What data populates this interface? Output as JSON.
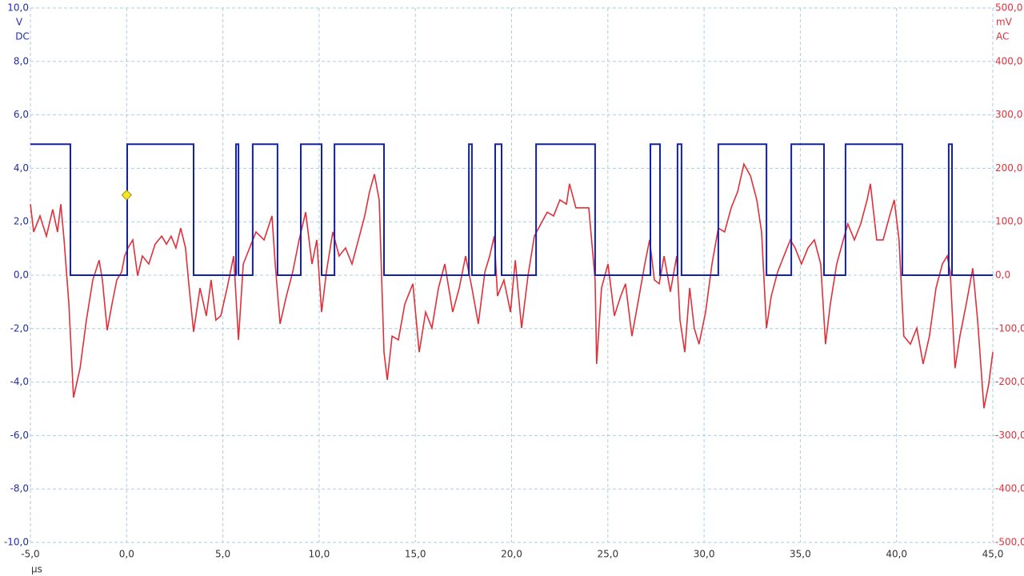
{
  "chart_data": {
    "type": "line",
    "x_unit": "µs",
    "y_unit": "V",
    "y_coupling": "DC",
    "y2_unit": "mV",
    "y2_coupling": "AC",
    "xlim": [
      -5,
      45
    ],
    "xticks": [
      {
        "value": -5,
        "label": "-5,0"
      },
      {
        "value": 0,
        "label": "0,0"
      },
      {
        "value": 5,
        "label": "5,0"
      },
      {
        "value": 10,
        "label": "10,0"
      },
      {
        "value": 15,
        "label": "15,0"
      },
      {
        "value": 20,
        "label": "20,0"
      },
      {
        "value": 25,
        "label": "25,0"
      },
      {
        "value": 30,
        "label": "30,0"
      },
      {
        "value": 35,
        "label": "35,0"
      },
      {
        "value": 40,
        "label": "40,0"
      },
      {
        "value": 45,
        "label": "45,0"
      }
    ],
    "ylim": [
      -10,
      10
    ],
    "yticks": [
      {
        "value": -10,
        "label": "-10,0"
      },
      {
        "value": -8,
        "label": "-8,0"
      },
      {
        "value": -6,
        "label": "-6,0"
      },
      {
        "value": -4,
        "label": "-4,0"
      },
      {
        "value": -2,
        "label": "-2,0"
      },
      {
        "value": 0,
        "label": "0,0"
      },
      {
        "value": 2,
        "label": "2,0"
      },
      {
        "value": 4,
        "label": "4,0"
      },
      {
        "value": 6,
        "label": "6,0"
      },
      {
        "value": 8,
        "label": "8,0"
      },
      {
        "value": 10,
        "label": "10,0"
      }
    ],
    "y2lim": [
      -500,
      500
    ],
    "y2ticks": [
      {
        "value": -500,
        "label": "-500,0"
      },
      {
        "value": -400,
        "label": "-400,0"
      },
      {
        "value": -300,
        "label": "-300,0"
      },
      {
        "value": -200,
        "label": "-200,0"
      },
      {
        "value": -100,
        "label": "-100,0"
      },
      {
        "value": 0,
        "label": "0,0"
      },
      {
        "value": 100,
        "label": "100,0"
      },
      {
        "value": 200,
        "label": "200,0"
      },
      {
        "value": 300,
        "label": "300,0"
      },
      {
        "value": 400,
        "label": "400,0"
      },
      {
        "value": 500,
        "label": "500,0"
      }
    ],
    "grid": true,
    "y_color": "#1f2fa6",
    "y2_color": "#e0303a",
    "grid_color": "#a9cfe3",
    "trigger": {
      "x": 0,
      "y": 3,
      "color": "#f2e52a"
    },
    "series": [
      {
        "color": "#1020b0",
        "axis": "y",
        "x": [
          -5,
          -2.92,
          -2.92,
          0.03,
          0.03,
          3.48,
          3.48,
          5.68,
          5.68,
          5.81,
          5.81,
          6.55,
          6.55,
          7.84,
          7.84,
          9.05,
          9.05,
          10.13,
          10.13,
          10.8,
          10.8,
          13.37,
          13.37,
          17.78,
          17.78,
          17.94,
          17.94,
          19.15,
          19.15,
          19.48,
          19.48,
          21.27,
          21.27,
          24.34,
          24.34,
          27.21,
          27.21,
          27.71,
          27.71,
          28.62,
          28.62,
          28.83,
          28.83,
          30.74,
          30.74,
          33.24,
          33.24,
          34.53,
          34.53,
          36.23,
          36.23,
          37.35,
          37.35,
          40.3,
          40.3,
          42.71,
          42.71,
          42.88,
          42.88,
          45
        ],
        "values": [
          4.9,
          4.9,
          0,
          0,
          4.9,
          4.9,
          0,
          0,
          4.9,
          4.9,
          0,
          0,
          4.9,
          4.9,
          0,
          0,
          4.9,
          4.9,
          0,
          0,
          4.9,
          4.9,
          0,
          0,
          4.9,
          4.9,
          0,
          0,
          4.9,
          4.9,
          0,
          0,
          4.9,
          4.9,
          0,
          0,
          4.9,
          4.9,
          0,
          0,
          4.9,
          4.9,
          0,
          0,
          4.9,
          4.9,
          0,
          0,
          4.9,
          4.9,
          0,
          0,
          4.9,
          4.9,
          0,
          0,
          4.9,
          4.9,
          0,
          0
        ]
      },
      {
        "color": "#e0303a",
        "axis": "y2",
        "x": [
          -5,
          -4.83,
          -4.5,
          -4.17,
          -3.84,
          -3.59,
          -3.42,
          -3.25,
          -3,
          -2.76,
          -2.42,
          -2.09,
          -1.76,
          -1.43,
          -1.26,
          -1.01,
          -0.76,
          -0.51,
          -0.26,
          -0.1,
          0.07,
          0.32,
          0.57,
          0.82,
          1.15,
          1.48,
          1.82,
          2.07,
          2.31,
          2.56,
          2.81,
          3.06,
          3.23,
          3.48,
          3.81,
          4.14,
          4.39,
          4.64,
          4.89,
          5.22,
          5.56,
          5.81,
          6.06,
          6.39,
          6.72,
          7.14,
          7.55,
          7.72,
          7.97,
          8.3,
          8.63,
          8.96,
          9.3,
          9.63,
          9.88,
          10.13,
          10.38,
          10.71,
          11.04,
          11.37,
          11.71,
          12.04,
          12.37,
          12.62,
          12.87,
          13.12,
          13.37,
          13.54,
          13.79,
          14.12,
          14.45,
          14.87,
          15.2,
          15.53,
          15.86,
          16.2,
          16.53,
          16.94,
          17.28,
          17.61,
          17.94,
          18.27,
          18.61,
          18.86,
          19.1,
          19.27,
          19.6,
          19.94,
          20.19,
          20.52,
          20.85,
          21.18,
          21.52,
          21.85,
          22.18,
          22.51,
          22.85,
          23.01,
          23.34,
          23.68,
          24.01,
          24.34,
          24.42,
          24.67,
          25.01,
          25.34,
          25.67,
          25.92,
          26.25,
          26.59,
          26.92,
          27.17,
          27.42,
          27.67,
          27.92,
          28.25,
          28.58,
          28.75,
          29,
          29.25,
          29.49,
          29.74,
          30.08,
          30.41,
          30.74,
          31.07,
          31.41,
          31.74,
          32.07,
          32.41,
          32.74,
          32.99,
          33.24,
          33.49,
          33.82,
          34.15,
          34.48,
          34.73,
          35.06,
          35.4,
          35.73,
          36.06,
          36.31,
          36.56,
          36.89,
          37.23,
          37.47,
          37.81,
          38.14,
          38.47,
          38.64,
          38.97,
          39.3,
          39.64,
          39.88,
          40.13,
          40.38,
          40.72,
          41.05,
          41.38,
          41.71,
          42.05,
          42.38,
          42.63,
          42.79,
          43.04,
          43.29,
          43.62,
          43.96,
          44.21,
          44.54,
          44.79,
          45
        ],
        "values": [
          133,
          81,
          111,
          73,
          123,
          81,
          133,
          66,
          -54,
          -229,
          -174,
          -84,
          -9,
          28,
          -9,
          -103,
          -54,
          -9,
          6,
          36,
          51,
          66,
          -1,
          36,
          21,
          58,
          73,
          58,
          73,
          51,
          88,
          51,
          -16,
          -106,
          -24,
          -76,
          -9,
          -84,
          -76,
          -24,
          36,
          -121,
          21,
          51,
          81,
          66,
          111,
          21,
          -91,
          -39,
          6,
          66,
          118,
          21,
          66,
          -69,
          6,
          81,
          36,
          51,
          21,
          66,
          111,
          156,
          189,
          141,
          -144,
          -196,
          -114,
          -121,
          -54,
          -16,
          -144,
          -69,
          -99,
          -24,
          21,
          -69,
          -24,
          36,
          -24,
          -91,
          6,
          36,
          73,
          -39,
          -9,
          -69,
          28,
          -99,
          -1,
          73,
          96,
          118,
          111,
          141,
          133,
          171,
          126,
          126,
          126,
          -9,
          -166,
          -24,
          21,
          -76,
          -39,
          -16,
          -114,
          -46,
          21,
          66,
          -9,
          -16,
          36,
          -31,
          36,
          -84,
          -144,
          -24,
          -99,
          -129,
          -69,
          21,
          88,
          81,
          126,
          156,
          208,
          186,
          141,
          81,
          -99,
          -39,
          6,
          36,
          66,
          51,
          21,
          51,
          66,
          21,
          -129,
          -54,
          21,
          66,
          96,
          66,
          96,
          141,
          171,
          66,
          66,
          111,
          141,
          66,
          -114,
          -129,
          -99,
          -166,
          -114,
          -24,
          21,
          36,
          6,
          -174,
          -114,
          -54,
          13,
          -84,
          -249,
          -204,
          -144
        ]
      }
    ]
  }
}
